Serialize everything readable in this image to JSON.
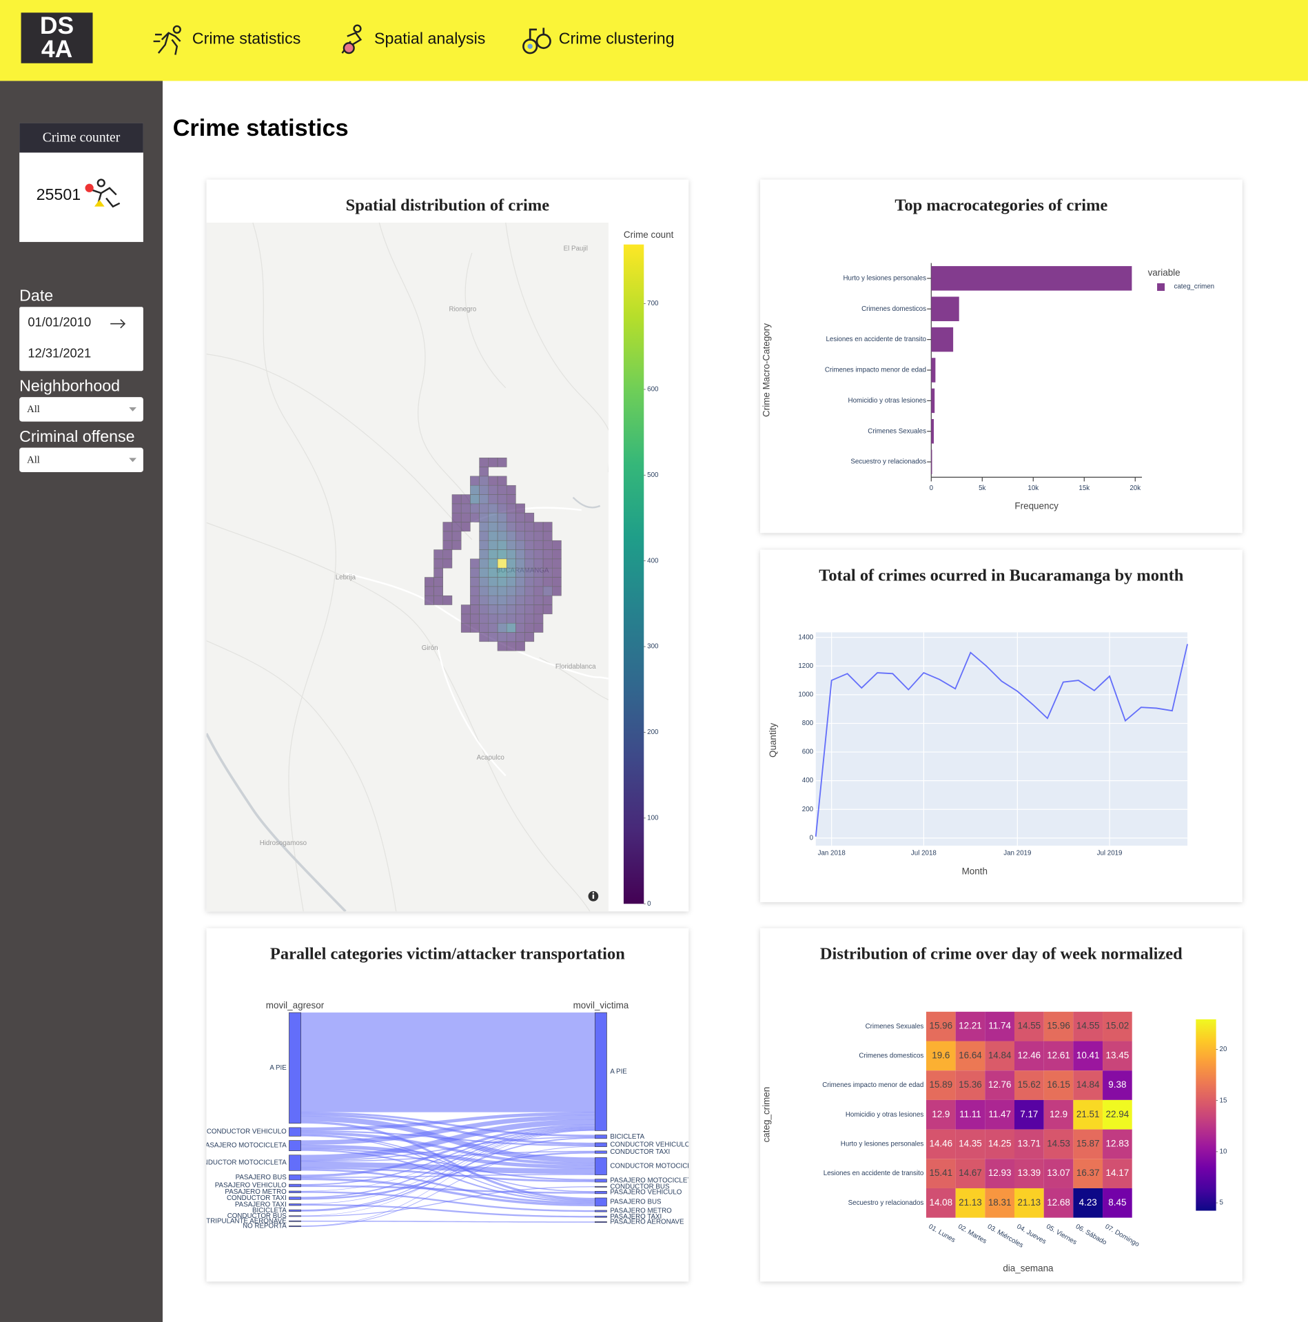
{
  "header": {
    "logo": [
      "DS",
      "4A"
    ],
    "nav": [
      "Crime statistics",
      "Spatial analysis",
      "Crime clustering"
    ]
  },
  "sidebar": {
    "crime_counter": {
      "title": "Crime counter",
      "value": 25501
    },
    "date": {
      "label": "Date",
      "start": "01/01/2010",
      "end": "12/31/2021"
    },
    "neighborhood": {
      "label": "Neighborhood",
      "value": "All"
    },
    "criminal_offense": {
      "label": "Criminal offense",
      "value": "All"
    }
  },
  "page_title": "Crime statistics",
  "chart_data": [
    {
      "type": "mapgrid",
      "title": "Spatial distribution of crime",
      "colorbar_title": "Crime count",
      "colorscale": "Viridis",
      "zlim": [
        0,
        769
      ],
      "zticks": [
        0,
        100,
        200,
        300,
        400,
        500,
        600,
        700
      ],
      "places": [
        "El Paujil",
        "Rionegro",
        "Lebrija",
        "BUCARAMANGA",
        "Girón",
        "Floridablanca",
        "Acapulco",
        "Hidrosogamoso"
      ],
      "z": [
        [
          null,
          null,
          null,
          null,
          null,
          null,
          60,
          50,
          55,
          null,
          null,
          null,
          null,
          null,
          null
        ],
        [
          null,
          null,
          null,
          null,
          null,
          null,
          70,
          null,
          null,
          null,
          null,
          null,
          null,
          null,
          null
        ],
        [
          null,
          null,
          null,
          null,
          null,
          80,
          120,
          60,
          55,
          null,
          null,
          null,
          null,
          null,
          null
        ],
        [
          null,
          null,
          null,
          null,
          null,
          230,
          150,
          90,
          70,
          60,
          null,
          null,
          null,
          null,
          null
        ],
        [
          null,
          null,
          null,
          50,
          60,
          250,
          180,
          100,
          80,
          60,
          null,
          null,
          null,
          null,
          null
        ],
        [
          null,
          null,
          null,
          60,
          70,
          120,
          140,
          160,
          110,
          70,
          50,
          null,
          null,
          null,
          null
        ],
        [
          null,
          null,
          null,
          50,
          60,
          80,
          150,
          200,
          170,
          90,
          70,
          55,
          null,
          null,
          null
        ],
        [
          null,
          null,
          50,
          60,
          50,
          null,
          180,
          220,
          190,
          120,
          80,
          70,
          60,
          50,
          null
        ],
        [
          null,
          null,
          55,
          60,
          null,
          null,
          160,
          250,
          230,
          170,
          110,
          80,
          70,
          60,
          null
        ],
        [
          null,
          null,
          50,
          55,
          null,
          null,
          170,
          260,
          280,
          200,
          150,
          90,
          70,
          60,
          50
        ],
        [
          null,
          60,
          55,
          null,
          null,
          null,
          200,
          300,
          320,
          260,
          180,
          110,
          80,
          65,
          50
        ],
        [
          null,
          55,
          50,
          null,
          null,
          90,
          220,
          310,
          760,
          280,
          200,
          120,
          85,
          60,
          55
        ],
        [
          null,
          60,
          null,
          null,
          null,
          110,
          240,
          300,
          330,
          290,
          190,
          130,
          90,
          70,
          55
        ],
        [
          50,
          55,
          null,
          null,
          null,
          100,
          200,
          260,
          280,
          240,
          170,
          110,
          80,
          60,
          50
        ],
        [
          55,
          60,
          null,
          null,
          null,
          90,
          170,
          220,
          230,
          200,
          150,
          100,
          70,
          120,
          50
        ],
        [
          60,
          55,
          50,
          null,
          null,
          80,
          140,
          180,
          190,
          160,
          120,
          90,
          70,
          60,
          null
        ],
        [
          null,
          null,
          null,
          null,
          60,
          70,
          110,
          140,
          150,
          130,
          100,
          80,
          60,
          55,
          null
        ],
        [
          null,
          null,
          null,
          null,
          55,
          65,
          90,
          110,
          120,
          110,
          90,
          70,
          60,
          null,
          null
        ],
        [
          null,
          null,
          null,
          null,
          50,
          60,
          80,
          100,
          200,
          280,
          80,
          60,
          50,
          null,
          null
        ],
        [
          null,
          null,
          null,
          null,
          null,
          null,
          70,
          90,
          100,
          90,
          70,
          60,
          null,
          null,
          null
        ],
        [
          null,
          null,
          null,
          null,
          null,
          null,
          null,
          null,
          60,
          55,
          50,
          null,
          null,
          null,
          null
        ]
      ]
    },
    {
      "type": "hbar",
      "title": "Top macrocategories of crime",
      "x_label": "Frequency",
      "y_label": "Crime Macro-Category",
      "legend_title": "variable",
      "legend": "right",
      "categories": [
        "Hurto y lesiones personales",
        "Crimenes domesticos",
        "Lesiones en accidente de transito",
        "Crimenes impacto menor de edad",
        "Homicidio y otras lesiones",
        "Crimenes Sexuales",
        "Secuestro y relacionados"
      ],
      "series": [
        {
          "name": "categ_crimen",
          "color": "#833c8e",
          "values": [
            19670,
            2730,
            2150,
            410,
            330,
            250,
            80
          ]
        }
      ],
      "xlim": [
        0,
        20660
      ],
      "xticks": [
        0,
        {
          "value": 5000,
          "label": "5k"
        },
        {
          "value": 10000,
          "label": "10k"
        },
        {
          "value": 15000,
          "label": "15k"
        },
        {
          "value": 20000,
          "label": "20k"
        }
      ]
    },
    {
      "type": "line",
      "title": "Total of crimes ocurred in Bucaramanga by month",
      "x_label": "Month",
      "y_label": "Quantity",
      "grid": true,
      "x": [
        "2017-12",
        "2018-01",
        "2018-02",
        "2018-03",
        "2018-04",
        "2018-05",
        "2018-06",
        "2018-07",
        "2018-08",
        "2018-09",
        "2018-10",
        "2018-11",
        "2018-12",
        "2019-01",
        "2019-02",
        "2019-03",
        "2019-04",
        "2019-05",
        "2019-06",
        "2019-07",
        "2019-08",
        "2019-09",
        "2019-10",
        "2019-11",
        "2019-12"
      ],
      "series": [
        {
          "name": "Quantity",
          "color": "#636efa",
          "values": [
            10,
            1100,
            1147,
            1047,
            1153,
            1147,
            1035,
            1153,
            1106,
            1041,
            1294,
            1200,
            1094,
            1024,
            929,
            835,
            1088,
            1100,
            1029,
            1129,
            818,
            912,
            906,
            888,
            1353
          ]
        }
      ],
      "xlim": [
        "2017-12-01",
        "2019-12-01"
      ],
      "xticks": [
        {
          "value": "2018-01",
          "label": "Jan 2018"
        },
        {
          "value": "2018-07",
          "label": "Jul 2018"
        },
        {
          "value": "2019-01",
          "label": "Jan 2019"
        },
        {
          "value": "2019-07",
          "label": "Jul 2019"
        }
      ],
      "ylim": [
        -53,
        1435
      ],
      "yticks": [
        0,
        200,
        400,
        600,
        800,
        1000,
        1200,
        1400
      ]
    },
    {
      "type": "parcats",
      "title": "Parallel categories victim/attacker transportation",
      "color": "#636efa",
      "dimensions": [
        {
          "label": "movil_agresor",
          "categories": [
            "A PIE",
            "CONDUCTOR VEHICULO",
            "PASAJERO MOTOCICLETA",
            "CONDUCTOR MOTOCICLETA",
            "PASAJERO BUS",
            "PASAJERO VEHICULO",
            "PASAJERO METRO",
            "CONDUCTOR TAXI",
            "PASAJERO TAXI",
            "BICICLETA",
            "CONDUCTOR BUS",
            "TRIPULANTE AERONAVE",
            "NO REPORTA"
          ]
        },
        {
          "label": "movil_victima",
          "categories": [
            "A PIE",
            "BICICLETA",
            "CONDUCTOR VEHICULO",
            "CONDUCTOR TAXI",
            "CONDUCTOR MOTOCICLETA",
            "PASAJERO MOTOCICLETA",
            "CONDUCTOR BUS",
            "PASAJERO VEHICULO",
            "PASAJERO BUS",
            "PASAJERO METRO",
            "PASAJERO TAXI",
            "PASAJERO AERONAVE"
          ]
        }
      ],
      "flows": [
        {
          "source": "A PIE",
          "target": "A PIE",
          "count": 11500
        },
        {
          "source": "A PIE",
          "target": "CONDUCTOR MOTOCICLETA",
          "count": 600
        },
        {
          "source": "A PIE",
          "target": "PASAJERO BUS",
          "count": 250
        },
        {
          "source": "A PIE",
          "target": "CONDUCTOR VEHICULO",
          "count": 250
        },
        {
          "source": "A PIE",
          "target": "BICICLETA",
          "count": 200
        },
        {
          "source": "CONDUCTOR VEHICULO",
          "target": "A PIE",
          "count": 350
        },
        {
          "source": "CONDUCTOR VEHICULO",
          "target": "CONDUCTOR MOTOCICLETA",
          "count": 300
        },
        {
          "source": "CONDUCTOR VEHICULO",
          "target": "CONDUCTOR VEHICULO",
          "count": 150
        },
        {
          "source": "CONDUCTOR VEHICULO",
          "target": "PASAJERO VEHICULO",
          "count": 100
        },
        {
          "source": "CONDUCTOR VEHICULO",
          "target": "PASAJERO BUS",
          "count": 100
        },
        {
          "source": "PASAJERO MOTOCICLETA",
          "target": "A PIE",
          "count": 500
        },
        {
          "source": "PASAJERO MOTOCICLETA",
          "target": "CONDUCTOR MOTOCICLETA",
          "count": 400
        },
        {
          "source": "PASAJERO MOTOCICLETA",
          "target": "PASAJERO MOTOCICLETA",
          "count": 150
        },
        {
          "source": "PASAJERO MOTOCICLETA",
          "target": "PASAJERO BUS",
          "count": 150
        },
        {
          "source": "CONDUCTOR MOTOCICLETA",
          "target": "A PIE",
          "count": 600
        },
        {
          "source": "CONDUCTOR MOTOCICLETA",
          "target": "CONDUCTOR MOTOCICLETA",
          "count": 600
        },
        {
          "source": "CONDUCTOR MOTOCICLETA",
          "target": "PASAJERO MOTOCICLETA",
          "count": 200
        },
        {
          "source": "CONDUCTOR MOTOCICLETA",
          "target": "PASAJERO BUS",
          "count": 200
        },
        {
          "source": "CONDUCTOR MOTOCICLETA",
          "target": "BICICLETA",
          "count": 100
        },
        {
          "source": "CONDUCTOR MOTOCICLETA",
          "target": "CONDUCTOR TAXI",
          "count": 100
        },
        {
          "source": "PASAJERO BUS",
          "target": "A PIE",
          "count": 250
        },
        {
          "source": "PASAJERO BUS",
          "target": "PASAJERO BUS",
          "count": 250
        },
        {
          "source": "PASAJERO BUS",
          "target": "CONDUCTOR MOTOCICLETA",
          "count": 100
        },
        {
          "source": "PASAJERO VEHICULO",
          "target": "A PIE",
          "count": 120
        },
        {
          "source": "PASAJERO VEHICULO",
          "target": "PASAJERO VEHICULO",
          "count": 180
        },
        {
          "source": "PASAJERO METRO",
          "target": "PASAJERO METRO",
          "count": 170
        },
        {
          "source": "PASAJERO METRO",
          "target": "A PIE",
          "count": 30
        },
        {
          "source": "CONDUCTOR TAXI",
          "target": "A PIE",
          "count": 120
        },
        {
          "source": "CONDUCTOR TAXI",
          "target": "CONDUCTOR TAXI",
          "count": 180
        },
        {
          "source": "PASAJERO TAXI",
          "target": "PASAJERO TAXI",
          "count": 160
        },
        {
          "source": "PASAJERO TAXI",
          "target": "A PIE",
          "count": 40
        },
        {
          "source": "BICICLETA",
          "target": "A PIE",
          "count": 80
        },
        {
          "source": "BICICLETA",
          "target": "BICICLETA",
          "count": 120
        },
        {
          "source": "CONDUCTOR BUS",
          "target": "CONDUCTOR BUS",
          "count": 80
        },
        {
          "source": "CONDUCTOR BUS",
          "target": "A PIE",
          "count": 20
        },
        {
          "source": "TRIPULANTE AERONAVE",
          "target": "PASAJERO AERONAVE",
          "count": 100
        },
        {
          "source": "NO REPORTA",
          "target": "A PIE",
          "count": 40
        },
        {
          "source": "NO REPORTA",
          "target": "CONDUCTOR VEHICULO",
          "count": 60
        }
      ]
    },
    {
      "type": "heatmap",
      "title": "Distribution of crime over day of week normalized",
      "x_label": "dia_semana",
      "y_label": "categ_crimen",
      "colorscale": "Plasma",
      "x_categories": [
        "01. Lunes",
        "02. Martes",
        "03. Miércoles",
        "04. Jueves",
        "05. Viernes",
        "06. Sábado",
        "07. Domingo"
      ],
      "y_categories": [
        "Crimenes Sexuales",
        "Crimenes domesticos",
        "Crimenes impacto menor de edad",
        "Homicidio y otras lesiones",
        "Hurto y lesiones personales",
        "Lesiones en accidente de transito",
        "Secuestro y relacionados"
      ],
      "z": [
        [
          15.96,
          12.21,
          11.74,
          14.55,
          15.96,
          14.55,
          15.02
        ],
        [
          19.6,
          16.64,
          14.84,
          12.46,
          12.61,
          10.41,
          13.45
        ],
        [
          15.89,
          15.36,
          12.76,
          15.62,
          16.15,
          14.84,
          9.38
        ],
        [
          12.9,
          11.11,
          11.47,
          7.17,
          12.9,
          21.51,
          22.94
        ],
        [
          14.46,
          14.35,
          14.25,
          13.71,
          14.53,
          15.87,
          12.83
        ],
        [
          15.41,
          14.67,
          12.93,
          13.39,
          13.07,
          16.37,
          14.17
        ],
        [
          14.08,
          21.13,
          18.31,
          21.13,
          12.68,
          4.23,
          8.45
        ]
      ],
      "zlim": [
        4.23,
        22.94
      ],
      "zticks": [
        5,
        10,
        15,
        20
      ]
    }
  ]
}
